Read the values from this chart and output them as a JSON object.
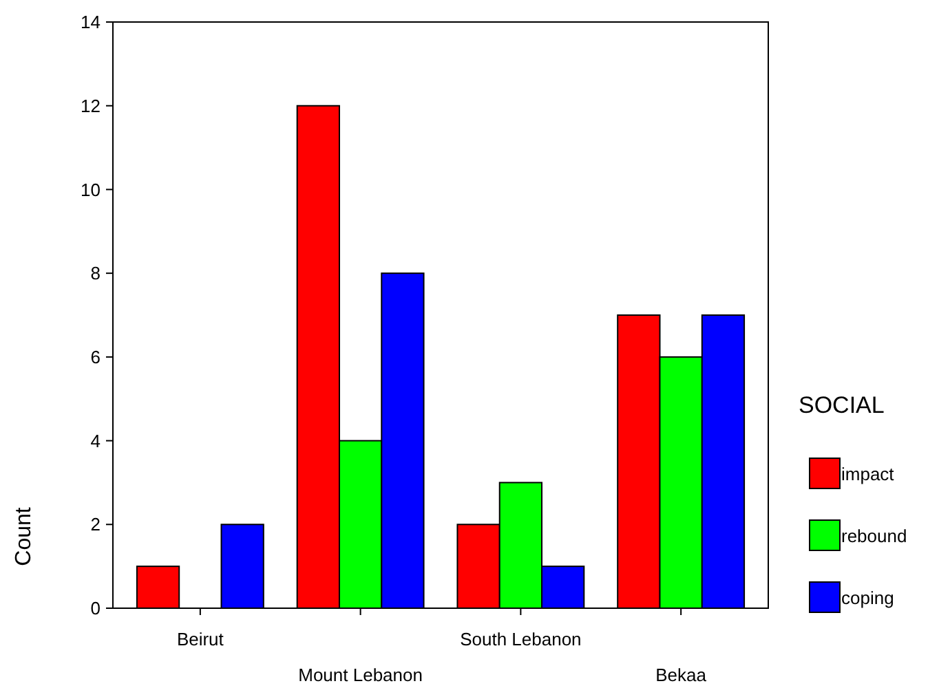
{
  "chart_data": {
    "type": "bar",
    "ylabel": "Count",
    "legend_title": "SOCIAL",
    "categories": [
      "Beirut",
      "Mount Lebanon",
      "South Lebanon",
      "Bekaa"
    ],
    "series": [
      {
        "name": "impact",
        "color": "#ff0000",
        "values": [
          1,
          12,
          2,
          7
        ]
      },
      {
        "name": "rebound",
        "color": "#00ff00",
        "values": [
          0,
          4,
          3,
          6
        ]
      },
      {
        "name": "coping",
        "color": "#0000ff",
        "values": [
          2,
          8,
          1,
          7
        ]
      }
    ],
    "ylim": [
      0,
      14
    ],
    "yticks": [
      0,
      2,
      4,
      6,
      8,
      10,
      12,
      14
    ],
    "grid": false,
    "legend": "right"
  }
}
